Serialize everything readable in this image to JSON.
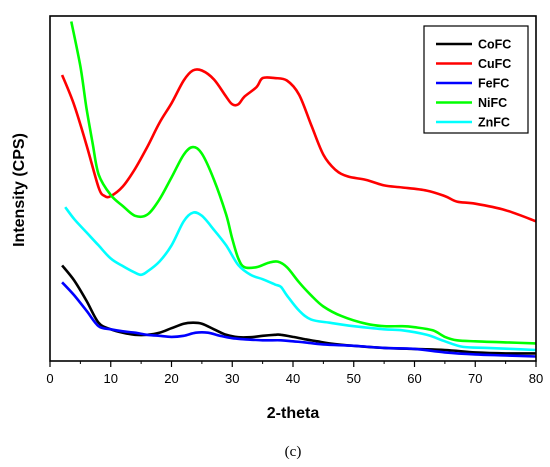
{
  "caption": "(c)",
  "chart_data": {
    "type": "line",
    "xlabel": "2-theta",
    "ylabel": "Intensity (CPS)",
    "xlim": [
      0,
      80
    ],
    "ylim": [
      0,
      100
    ],
    "x_ticks": [
      0,
      10,
      20,
      30,
      40,
      50,
      60,
      70,
      80
    ],
    "y_ticks_labeled": false,
    "grid": false,
    "legend_position": "top-right",
    "series": [
      {
        "name": "CoFC",
        "color": "#000000",
        "points": [
          [
            2,
            27.7
          ],
          [
            4,
            23.3
          ],
          [
            6,
            17.5
          ],
          [
            8,
            11.1
          ],
          [
            10,
            9.2
          ],
          [
            12,
            8.2
          ],
          [
            14,
            7.6
          ],
          [
            16,
            7.6
          ],
          [
            18,
            8.2
          ],
          [
            20,
            9.5
          ],
          [
            22,
            10.8
          ],
          [
            23.5,
            11.1
          ],
          [
            25,
            10.8
          ],
          [
            27,
            9.2
          ],
          [
            29,
            7.6
          ],
          [
            31,
            6.9
          ],
          [
            33,
            6.9
          ],
          [
            35,
            7.3
          ],
          [
            37,
            7.6
          ],
          [
            38,
            7.6
          ],
          [
            40,
            7.0
          ],
          [
            42,
            6.3
          ],
          [
            44,
            5.7
          ],
          [
            46,
            5.1
          ],
          [
            50,
            4.4
          ],
          [
            55,
            3.8
          ],
          [
            60,
            3.5
          ],
          [
            65,
            3.2
          ],
          [
            70,
            2.5
          ],
          [
            75,
            2.2
          ],
          [
            80,
            2.2
          ]
        ]
      },
      {
        "name": "CuFC",
        "color": "#ff0000",
        "points": [
          [
            2,
            82.9
          ],
          [
            4,
            74.1
          ],
          [
            6,
            62.7
          ],
          [
            8,
            50.3
          ],
          [
            9,
            47.8
          ],
          [
            10,
            47.8
          ],
          [
            12,
            50.6
          ],
          [
            14,
            55.7
          ],
          [
            16,
            62.0
          ],
          [
            18,
            69.0
          ],
          [
            20,
            74.7
          ],
          [
            22,
            81.3
          ],
          [
            23.5,
            84.2
          ],
          [
            25,
            84.2
          ],
          [
            27,
            81.6
          ],
          [
            29,
            76.6
          ],
          [
            30,
            74.4
          ],
          [
            31,
            74.4
          ],
          [
            32,
            76.6
          ],
          [
            34,
            79.4
          ],
          [
            35,
            82.0
          ],
          [
            37,
            82.0
          ],
          [
            39,
            81.3
          ],
          [
            41,
            77.2
          ],
          [
            43,
            68.4
          ],
          [
            45,
            59.8
          ],
          [
            47,
            55.4
          ],
          [
            49,
            53.5
          ],
          [
            52,
            52.5
          ],
          [
            55,
            50.9
          ],
          [
            58,
            50.3
          ],
          [
            62,
            49.4
          ],
          [
            65,
            47.8
          ],
          [
            67,
            46.2
          ],
          [
            70,
            45.6
          ],
          [
            75,
            43.7
          ],
          [
            80,
            40.5
          ]
        ]
      },
      {
        "name": "FeFC",
        "color": "#0000ff",
        "points": [
          [
            2,
            22.8
          ],
          [
            4,
            19.0
          ],
          [
            6,
            14.6
          ],
          [
            8,
            10.1
          ],
          [
            10,
            9.2
          ],
          [
            12,
            8.6
          ],
          [
            14,
            8.2
          ],
          [
            16,
            7.6
          ],
          [
            18,
            7.3
          ],
          [
            20,
            7.0
          ],
          [
            22,
            7.3
          ],
          [
            24,
            8.2
          ],
          [
            26,
            8.2
          ],
          [
            28,
            7.3
          ],
          [
            30,
            6.6
          ],
          [
            32,
            6.3
          ],
          [
            35,
            6.0
          ],
          [
            38,
            6.0
          ],
          [
            40,
            5.7
          ],
          [
            42,
            5.4
          ],
          [
            45,
            4.8
          ],
          [
            50,
            4.4
          ],
          [
            55,
            3.8
          ],
          [
            60,
            3.5
          ],
          [
            65,
            2.5
          ],
          [
            70,
            1.9
          ],
          [
            75,
            1.6
          ],
          [
            80,
            1.3
          ]
        ]
      },
      {
        "name": "NiFC",
        "color": "#00ff00",
        "points": [
          [
            3.5,
            98.4
          ],
          [
            5,
            85.4
          ],
          [
            6,
            73.4
          ],
          [
            7,
            63.3
          ],
          [
            8,
            54.1
          ],
          [
            10,
            48.1
          ],
          [
            12,
            44.9
          ],
          [
            14,
            42.1
          ],
          [
            16,
            42.4
          ],
          [
            18,
            46.8
          ],
          [
            20,
            53.2
          ],
          [
            22,
            59.8
          ],
          [
            23.5,
            62.0
          ],
          [
            25,
            60.1
          ],
          [
            27,
            52.5
          ],
          [
            29,
            42.4
          ],
          [
            30,
            35.4
          ],
          [
            31,
            29.7
          ],
          [
            32,
            27.2
          ],
          [
            34,
            27.2
          ],
          [
            36,
            28.5
          ],
          [
            37.5,
            28.8
          ],
          [
            39,
            27.2
          ],
          [
            41,
            22.8
          ],
          [
            43,
            19.0
          ],
          [
            45,
            15.8
          ],
          [
            48,
            13.0
          ],
          [
            52,
            10.8
          ],
          [
            55,
            10.1
          ],
          [
            58,
            10.1
          ],
          [
            60,
            9.8
          ],
          [
            63,
            8.9
          ],
          [
            65,
            7.0
          ],
          [
            67,
            6.0
          ],
          [
            70,
            5.7
          ],
          [
            75,
            5.4
          ],
          [
            80,
            5.1
          ]
        ]
      },
      {
        "name": "ZnFC",
        "color": "#00ffff",
        "points": [
          [
            2.5,
            44.6
          ],
          [
            4,
            41.1
          ],
          [
            6,
            37.3
          ],
          [
            8,
            33.5
          ],
          [
            10,
            29.7
          ],
          [
            12,
            27.5
          ],
          [
            14,
            25.6
          ],
          [
            15,
            25.0
          ],
          [
            16,
            25.9
          ],
          [
            18,
            28.8
          ],
          [
            20,
            33.5
          ],
          [
            22,
            40.5
          ],
          [
            23.5,
            43.0
          ],
          [
            25,
            42.1
          ],
          [
            27,
            38.0
          ],
          [
            29,
            33.5
          ],
          [
            31,
            27.8
          ],
          [
            33,
            25.0
          ],
          [
            35,
            23.7
          ],
          [
            37,
            22.2
          ],
          [
            38,
            21.5
          ],
          [
            39,
            19.0
          ],
          [
            41,
            14.6
          ],
          [
            43,
            12.0
          ],
          [
            46,
            11.1
          ],
          [
            50,
            10.1
          ],
          [
            55,
            9.2
          ],
          [
            58,
            8.9
          ],
          [
            62,
            7.6
          ],
          [
            65,
            5.7
          ],
          [
            68,
            4.1
          ],
          [
            72,
            3.8
          ],
          [
            76,
            3.5
          ],
          [
            80,
            3.2
          ]
        ]
      }
    ]
  }
}
